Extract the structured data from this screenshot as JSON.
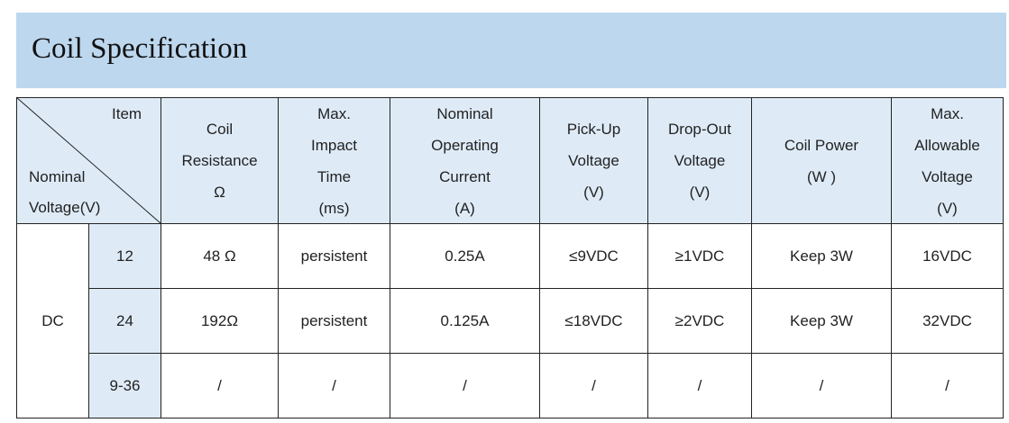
{
  "header": {
    "title": "Coil Specification"
  },
  "table": {
    "corner": {
      "item": "Item",
      "nominal": [
        "Nominal",
        "Voltage(V)"
      ]
    },
    "columns": [
      [
        "Coil",
        "Resistance",
        "Ω"
      ],
      [
        "Max.",
        "Impact",
        "Time",
        "(ms)"
      ],
      [
        "Nominal",
        "Operating",
        "Current",
        "(A)"
      ],
      [
        "Pick-Up",
        "Voltage",
        "(V)"
      ],
      [
        "Drop-Out",
        "Voltage",
        "(V)"
      ],
      [
        "Coil Power",
        "(W )"
      ],
      [
        "Max.",
        "Allowable",
        "Voltage",
        "(V)"
      ]
    ],
    "group": "DC",
    "rows": [
      {
        "voltage": "12",
        "cells": [
          "48 Ω",
          "persistent",
          "0.25A",
          "≤9VDC",
          "≥1VDC",
          "Keep 3W",
          "16VDC"
        ]
      },
      {
        "voltage": "24",
        "cells": [
          "192Ω",
          "persistent",
          "0.125A",
          "≤18VDC",
          "≥2VDC",
          "Keep 3W",
          "32VDC"
        ]
      },
      {
        "voltage": "9-36",
        "cells": [
          "/",
          "/",
          "/",
          "/",
          "/",
          "/",
          "/"
        ]
      }
    ]
  }
}
